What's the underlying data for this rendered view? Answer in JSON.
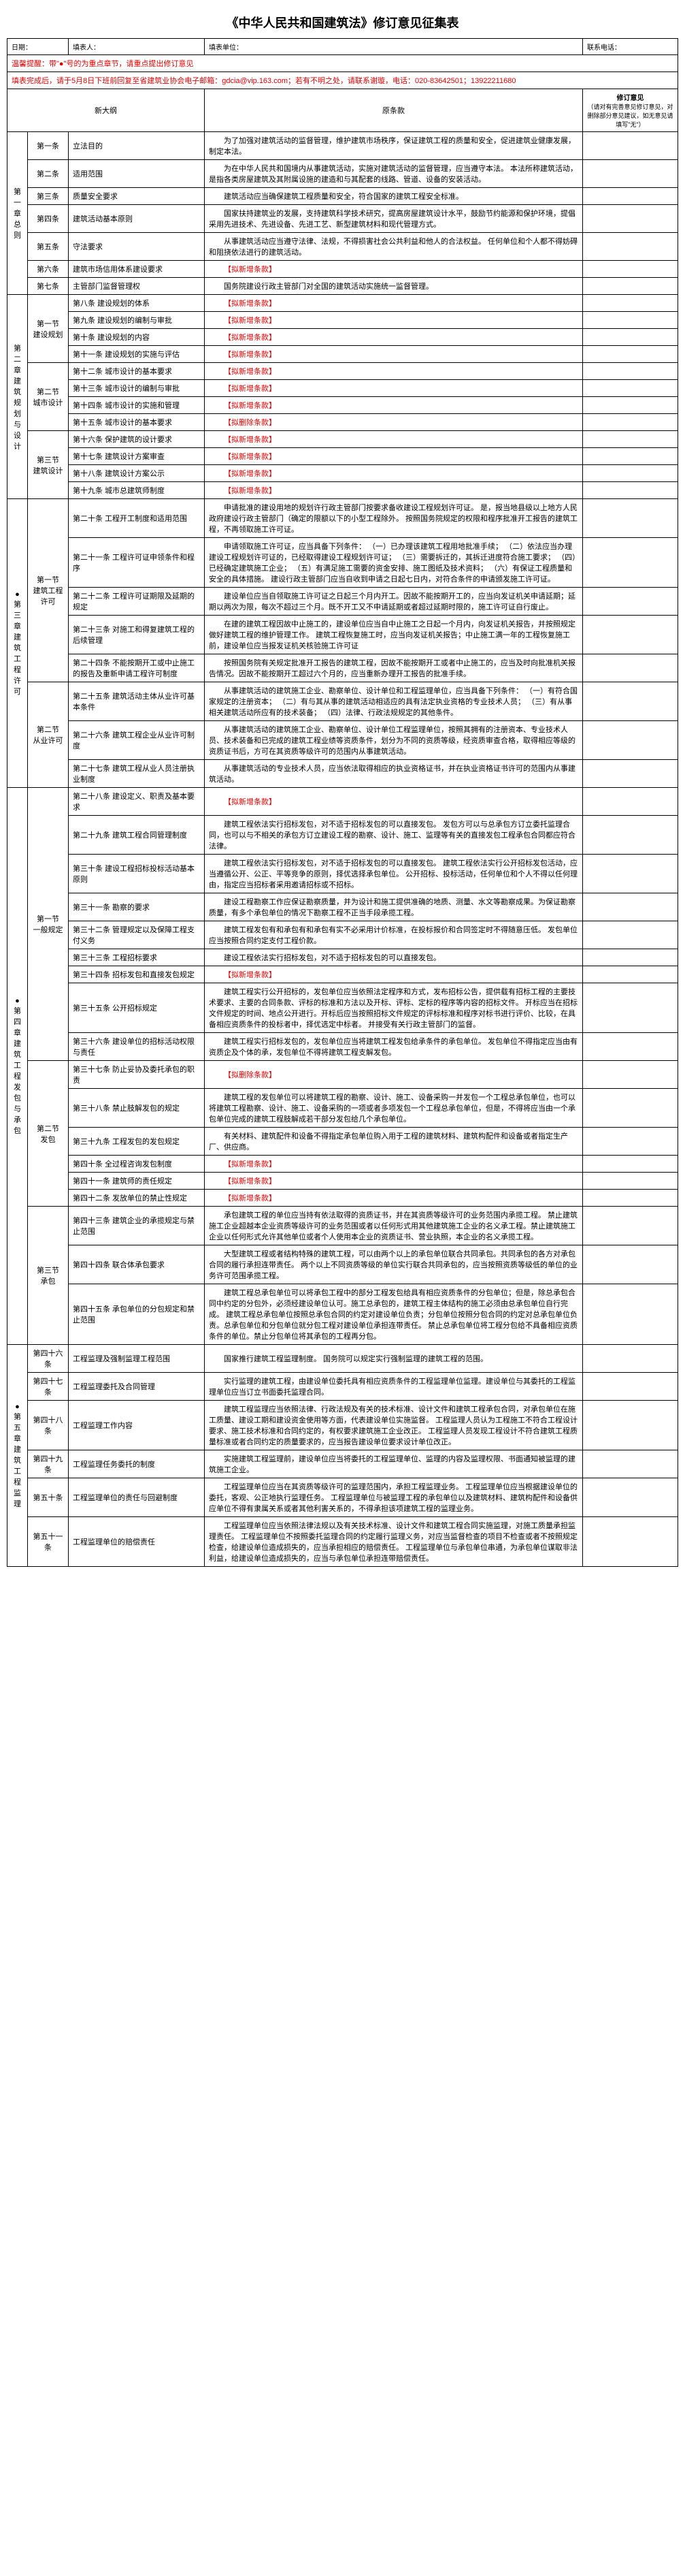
{
  "title": "《中华人民共和国建筑法》修订意见征集表",
  "hdr": {
    "date": "日期：",
    "filler": "填表人：",
    "unit": "填表单位：",
    "tel": "联系电话："
  },
  "warn1": "温馨提醒：带\"●\"号的为重点章节，请重点提出修订意见",
  "warn2": "填表完成后，请于5月8日下班前回复至省建筑业协会电子邮箱：gdcia@vip.163.com；若有不明之处，请联系谢璇，电话：020-83642501；13922211680",
  "cols": {
    "outline": "新大纲",
    "orig": "原条款",
    "opinion": "修订意见",
    "opnote": "（请对有完善意见修订意见，对删除部分意见建议，如无意见请填写\"无\"）"
  },
  "new": "【拟新增条款】",
  "del": "【拟删除条款】",
  "ch1": {
    "t": "第一章 总则",
    "r": [
      {
        "a": "第一条",
        "b": "立法目的",
        "c": "为了加强对建筑活动的监督管理，维护建筑市场秩序，保证建筑工程的质量和安全，促进建筑业健康发展，制定本法。"
      },
      {
        "a": "第二条",
        "b": "适用范围",
        "c": "为在中华人民共和国境内从事建筑活动，实施对建筑活动的监督管理，应当遵守本法。\n本法所称建筑活动，是指各类房屋建筑及其附属设施的建造和与其配套的线路、管道、设备的安装活动。"
      },
      {
        "a": "第三条",
        "b": "质量安全要求",
        "c": "建筑活动应当确保建筑工程质量和安全，符合国家的建筑工程安全标准。"
      },
      {
        "a": "第四条",
        "b": "建筑活动基本原则",
        "c": "国家扶持建筑业的发展，支持建筑科学技术研究，提高房屋建筑设计水平，鼓励节约能源和保护环境，提倡采用先进技术、先进设备、先进工艺、新型建筑材料和现代管理方式。"
      },
      {
        "a": "第五条",
        "b": "守法要求",
        "c": "从事建筑活动应当遵守法律、法规，不得损害社会公共利益和他人的合法权益。\n任何单位和个人都不得妨碍和阻挠依法进行的建筑活动。"
      },
      {
        "a": "第六条",
        "b": "建筑市场信用体系建设要求",
        "c": "NEW"
      },
      {
        "a": "第七条",
        "b": "主管部门监督管理权",
        "c": "国务院建设行政主管部门对全国的建筑活动实施统一监督管理。"
      }
    ]
  },
  "ch2": {
    "t": "第二章 建筑规划与设计",
    "s1": {
      "t": "第一节 建设规划",
      "r": [
        {
          "a": "第八条 建设规划的体系",
          "c": "NEW"
        },
        {
          "a": "第九条 建设规划的编制与审批",
          "c": "NEW"
        },
        {
          "a": "第十条 建设规划的内容",
          "c": "NEW"
        },
        {
          "a": "第十一条 建设规划的实施与评估",
          "c": "NEW"
        }
      ]
    },
    "s2": {
      "t": "第二节 城市设计",
      "r": [
        {
          "a": "第十二条 城市设计的基本要求",
          "c": "NEW"
        },
        {
          "a": "第十三条 城市设计的编制与审批",
          "c": "NEW"
        },
        {
          "a": "第十四条 城市设计的实施和管理",
          "c": "NEW"
        },
        {
          "a": "第十五条 城市设计的基本要求",
          "c": "DEL"
        }
      ]
    },
    "s3": {
      "t": "第三节 建筑设计",
      "r": [
        {
          "a": "第十六条 保护建筑的设计要求",
          "c": "NEW"
        },
        {
          "a": "第十七条 建筑设计方案审查",
          "c": "NEW"
        },
        {
          "a": "第十八条 建筑设计方案公示",
          "c": "NEW"
        },
        {
          "a": "第十九条 城市总建筑师制度",
          "c": "NEW"
        }
      ]
    }
  },
  "ch3": {
    "t": "第三章 建筑工程许可",
    "dot": true,
    "s1": {
      "t": "第一节 建筑工程许可",
      "r": [
        {
          "a": "第二十条 工程开工制度和适用范围",
          "c": "申请批准的建设用地的规划许行政主管部门按要求备收建设工程规划许可证。\n是，报当地县级以上地方人民政府建设行政主管部门（确定的限额以下的小型工程除外。\n按照国务院规定的权限和程序批准开工报告的建筑工程，不再领取施工许可证。"
        },
        {
          "a": "第二十一条 工程许可证申领条件和程序",
          "c": "申请领取施工许可证，应当具备下列条件：\n（一）已办理该建筑工程用地批准手续；\n（二）依法应当办理建设工程规划许可证的，已经取得建设工程规划许可证；\n（三）需要拆迁的，其拆迁进度符合施工要求；\n（四）已经确定建筑施工企业；\n（五）有满足施工需要的资金安排、施工图纸及技术资料；\n（六）有保证工程质量和安全的具体措施。\n建设行政主管部门应当自收到申请之日起七日内，对符合条件的申请颁发施工许可证。"
        },
        {
          "a": "第二十二条 工程许可证期限及延期的规定",
          "c": "建设单位应当自领取施工许可证之日起三个月内开工。因故不能按期开工的，应当向发证机关申请延期；延期以两次为限，每次不超过三个月。既不开工又不申请延期或者超过延期时限的，施工许可证自行废止。"
        },
        {
          "a": "第二十三条 对施工和得复建筑工程的后续管理",
          "c": "在建的建筑工程因故中止施工的，建设单位应当自中止施工之日起一个月内，向发证机关报告，并按照规定做好建筑工程的维护管理工作。\n建筑工程恢复施工时，应当向发证机关报告；中止施工满一年的工程恢复施工前，建设单位应当报发证机关核验施工许可证"
        },
        {
          "a": "第二十四条 不能按期开工或中止施工的报告及重新申请工程许可制度",
          "c": "按照国务院有关规定批准开工报告的建筑工程，因故不能按期开工或者中止施工的，应当及时向批准机关报告情况。因故不能按期开工超过六个月的，应当重新办理开工报告的批准手续。"
        }
      ]
    },
    "s2": {
      "t": "第二节 从业许可",
      "r": [
        {
          "a": "第二十五条 建筑活动主体从业许可基本条件",
          "c": "从事建筑活动的建筑施工企业、勘察单位、设计单位和工程监理单位，应当具备下列条件：\n（一）有符合国家规定的注册资本；\n（二）有与其从事的建筑活动相适应的具有法定执业资格的专业技术人员；\n（三）有从事相关建筑活动所应有的技术装备；\n（四）法律、行政法规规定的其他条件。"
        },
        {
          "a": "第二十六条 建筑工程企业从业许可制度",
          "c": "从事建筑活动的建筑施工企业、勘察单位、设计单位工程监理单位，按照其拥有的注册资本、专业技术人员、技术装备和已完成的建筑工程业绩等资质条件，划分为不同的资质等级，经资质审查合格，取得相应等级的资质证书后，方可在其资质等级许可的范围内从事建筑活动。"
        },
        {
          "a": "第二十七条 建筑工程从业人员注册执业制度",
          "c": "从事建筑活动的专业技术人员，应当依法取得相应的执业资格证书，并在执业资格证书许可的范围内从事建筑活动。"
        }
      ]
    }
  },
  "ch4": {
    "t": "第四章 建筑工程发包与承包",
    "dot": true,
    "s1": {
      "t": "第一节 一般规定",
      "r": [
        {
          "a": "第二十八条 建设定义、职责及基本要求",
          "c": "NEW"
        },
        {
          "a": "第二十九条 建筑工程合同管理制度",
          "c": "建筑工程依法实行招标发包，对不适于招标发包的可以直接发包。\n发包方可以与总承包方订立委托监理合同，也可以与不相关的承包方订立建设工程的勘察、设计、施工、监理等有关的直接发包工程承包合同都应符合法律。"
        },
        {
          "a": "第三十条 建设工程招标投标活动基本原则",
          "c": "建筑工程依法实行招标发包，对不适于招标发包的可以直接发包。\n建筑工程依法实行公开招标发包活动，应当遵循公开、公正、平等竞争的原则，择优选择承包单位。\n公开招标、投标活动，任何单位和个人不得以任何理由，指定应当招标者采用邀请招标或不招标。"
        },
        {
          "a": "第三十一条 勘察的要求",
          "c": "建设工程勘察工作应保证勘察质量，并为设计和施工提供准确的地质、测量、水文等勘察成果。为保证勘察质量，有多个承包单位的情况下勘察工程不正当手段承揽工程。"
        },
        {
          "a": "第三十二条 管理规定以及保障工程支付义务",
          "c": "建筑工程发包有和承包有和承包有实不必采用计价标准，在投标报价和合同签定时不得随意压低。\n发包单位应当按照合同约定支付工程价款。"
        },
        {
          "a": "第三十三条 工程招标要求",
          "c": "建设工程依法实行招标发包，对不适于招标发包的可以直接发包。"
        },
        {
          "a": "第三十四条 招标发包和直接发包规定",
          "c": "NEW"
        },
        {
          "a": "第三十五条 公开招标规定",
          "c": "建筑工程实行公开招标的，发包单位应当依照法定程序和方式，发布招标公告，提供载有招标工程的主要技术要求、主要的合同条款、评标的标准和方法以及开标、评标、定标的程序等内容的招标文件。\n开标应当在招标文件规定的时间、地点公开进行。开标后应当按照招标文件规定的评标标准和程序对标书进行评价、比较，在具备相应资质条件的投标者中，择优选定中标者。\n并接受有关行政主管部门的监督。"
        },
        {
          "a": "第三十六条 建设单位的招标活动权限与责任",
          "c": "建筑工程实行招标发包的，发包单位应当将建筑工程发包给承条件的承包单位。\n发包单位不得指定应当由有资质企及个体的承，发包单位不得将建筑工程支解发包。"
        }
      ]
    },
    "s2": {
      "t": "第二节 发包",
      "r": [
        {
          "a": "第三十七条 防止妥协及委托承包的职责",
          "c": "DEL"
        },
        {
          "a": "第三十八条 禁止肢解发包的规定",
          "c": "建筑工程的发包单位可以将建筑工程的勘察、设计、施工、设备采购一并发包一个工程总承包单位，也可以将建筑工程勘察、设计、施工、设备采购的一项或者多项发包一个工程总承包单位，但是，不得将应当由一个承包单位完成的建筑工程肢解成若干部分发包给几个承包单位。"
        },
        {
          "a": "第三十九条 工程发包的发包规定",
          "c": "有关材料、建筑配件和设备不得指定承包单位购入用于工程的建筑材料、建筑构配件和设备或者指定生产厂、供应商。"
        },
        {
          "a": "第四十条 全过程咨询发包制度",
          "c": "NEW"
        },
        {
          "a": "第四十一条 建筑师的责任规定",
          "c": "NEW"
        },
        {
          "a": "第四十二条 发放单位的禁止性规定",
          "c": "NEW"
        }
      ]
    },
    "s3": {
      "t": "第三节 承包",
      "r": [
        {
          "a": "第四十三条 建筑企业的承揽规定与禁止范围",
          "c": "承包建筑工程的单位应当持有依法取得的资质证书，并在其资质等级许可的业务范围内承揽工程。\n禁止建筑施工企业超越本企业资质等级许可的业务范围或者以任何形式用其他建筑施工企业的名义承工程。禁止建筑施工企业以任何形式允许其他单位或者个人使用本企业的资质证书、营业执照，本企业的名义承揽工程。"
        },
        {
          "a": "第四十四条 联合体承包要求",
          "c": "大型建筑工程或者结构特殊的建筑工程，可以由两个以上的承包单位联合共同承包。共同承包的各方对承包合同的履行承担连带责任。\n两个以上不同资质等级的单位实行联合共同承包的，应当按照资质等级低的单位的业务许可范围承揽工程。"
        },
        {
          "a": "第四十五条 承包单位的分包规定和禁止范围",
          "c": "建筑工程总承包单位可以将承包工程中的部分工程发包给具有相应资质条件的分包单位；但是，除总承包合同中约定的分包外，必须经建设单位认可。施工总承包的，建筑工程主体结构的施工必须由总承包单位自行完成。\n建筑工程总承包单位按照总承包合同的约定对建设单位负责；分包单位按照分包合同的约定对总承包单位负责。总承包单位和分包单位就分包工程对建设单位承担连带责任。\n禁止总承包单位将工程分包给不具备相应资质条件的单位。禁止分包单位将其承包的工程再分包。"
        }
      ]
    }
  },
  "ch5": {
    "t": "第五章 建筑工程监理",
    "dot": true,
    "r": [
      {
        "a": "第四十六条",
        "b": "工程监理及强制监理工程范围",
        "c": "国家推行建筑工程监理制度。\n国务院可以规定实行强制监理的建筑工程的范围。"
      },
      {
        "a": "第四十七条",
        "b": "工程监理委托及合同管理",
        "c": "实行监理的建筑工程，由建设单位委托具有相应资质条件的工程监理单位监理。建设单位与其委托的工程监理单位应当订立书面委托监理合同。"
      },
      {
        "a": "第四十八条",
        "b": "工程监理工作内容",
        "c": "建筑工程监理应当依照法律、行政法规及有关的技术标准、设计文件和建筑工程承包合同，对承包单位在施工质量、建设工期和建设资金使用等方面，代表建设单位实施监督。\n工程监理人员认为工程施工不符合工程设计要求、施工技术标准和合同约定的，有权要求建筑施工企业改正。\n工程监理人员发现工程设计不符合建筑工程质量标准或者合同约定的质量要求的，应当报告建设单位要求设计单位改正。"
      },
      {
        "a": "第四十九条",
        "b": "工程监理任务委托的制度",
        "c": "实施建筑工程监理前，建设单位应当将委托的工程监理单位、监理的内容及监理权限、书面通知被监理的建筑施工企业。"
      },
      {
        "a": "第五十条",
        "b": "工程监理单位的责任与回避制度",
        "c": "工程监理单位应当在其资质等级许可的监理范围内，承担工程监理业务。\n工程监理单位应当根据建设单位的委托，客观、公正地执行监理任务。\n工程监理单位与被监理工程的承包单位以及建筑材料、建筑构配件和设备供应单位不得有隶属关系或者其他利害关系的，不得承担该项建筑工程的监理业务。"
      },
      {
        "a": "第五十一条",
        "b": "工程监理单位的赔偿责任",
        "c": "工程监理单位应当依照法律法规以及有关技术标准、设计文件和建筑工程合同实施监理，对施工质量承担监理责任。\n工程监理单位不按照委托监理合同的约定履行监理义务，对应当监督检查的项目不检查或者不按照规定检查，给建设单位造成损失的，应当承担相应的赔偿责任。\n工程监理单位与承包单位串通，为承包单位谋取非法利益，给建设单位造成损失的，应当与承包单位承担连带赔偿责任。"
      }
    ]
  }
}
